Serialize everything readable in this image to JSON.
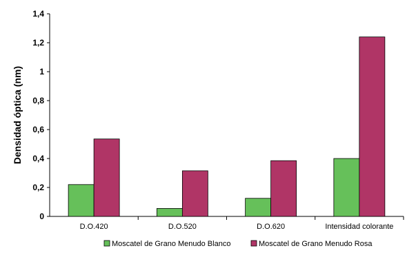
{
  "chart_data": {
    "type": "bar",
    "title": "",
    "xlabel": "",
    "ylabel": "Densidad óptica (nm)",
    "ylim": [
      0,
      1.4
    ],
    "yticks": [
      "0",
      "0,2",
      "0,4",
      "0,6",
      "0,8",
      "1",
      "1,2",
      "1,4"
    ],
    "categories": [
      "D.O.420",
      "D.O.520",
      "D.O.620",
      "Intensidad colorante"
    ],
    "series": [
      {
        "name": "Moscatel de Grano Menudo Blanco",
        "color": "#66c05a",
        "values": [
          0.22,
          0.055,
          0.125,
          0.4
        ]
      },
      {
        "name": "Moscatel de Grano Menudo Rosa",
        "color": "#b03566",
        "values": [
          0.535,
          0.315,
          0.385,
          1.24
        ]
      }
    ],
    "legend_position": "bottom",
    "grid": false
  }
}
